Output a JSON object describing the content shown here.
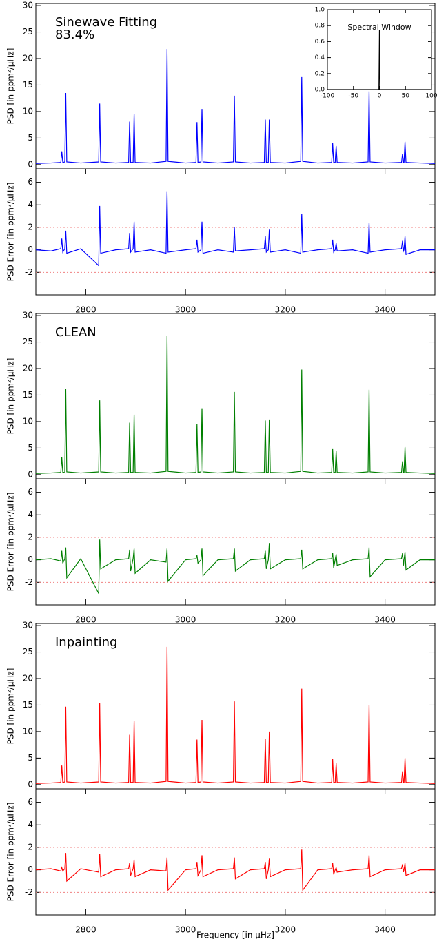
{
  "chart_data": [
    {
      "type": "line",
      "ylabel": "PSD [in ppm²/μHz]",
      "annotations": [
        "Sinewave Fitting",
        "83.4%"
      ],
      "xlim": [
        2700,
        3500
      ],
      "ylim": [
        -0.8,
        30.4
      ],
      "yticks": [
        0,
        5,
        10,
        15,
        20,
        25,
        30
      ],
      "x": [
        2700,
        2730,
        2750,
        2752,
        2754,
        2758,
        2760,
        2762,
        2790,
        2826,
        2828,
        2830,
        2860,
        2886,
        2888,
        2890,
        2895,
        2897,
        2899,
        2930,
        2961,
        2963,
        2965,
        3000,
        3021,
        3023,
        3025,
        3031,
        3033,
        3035,
        3065,
        3096,
        3098,
        3100,
        3130,
        3158,
        3160,
        3162,
        3166,
        3168,
        3170,
        3200,
        3231,
        3233,
        3235,
        3265,
        3293,
        3295,
        3297,
        3300,
        3302,
        3304,
        3335,
        3366,
        3368,
        3370,
        3400,
        3433,
        3435,
        3437,
        3438,
        3440,
        3442,
        3470,
        3500
      ],
      "series": [
        {
          "color": "#0000ff",
          "values": [
            0.2,
            0.3,
            0.4,
            2.5,
            0.4,
            0.5,
            13.5,
            0.5,
            0.3,
            0.5,
            11.5,
            0.5,
            0.3,
            0.4,
            8.1,
            0.4,
            0.4,
            9.5,
            0.4,
            0.3,
            0.6,
            21.8,
            0.6,
            0.3,
            0.4,
            8.0,
            0.4,
            0.5,
            10.5,
            0.5,
            0.3,
            0.5,
            13.0,
            0.5,
            0.3,
            0.4,
            8.5,
            0.4,
            0.4,
            8.5,
            0.4,
            0.3,
            0.6,
            16.5,
            0.6,
            0.3,
            0.4,
            4.0,
            0.4,
            0.4,
            3.5,
            0.4,
            0.3,
            0.5,
            13.8,
            0.5,
            0.3,
            0.4,
            2.0,
            0.4,
            0.4,
            4.3,
            0.4,
            0.3,
            0.2
          ]
        }
      ]
    },
    {
      "type": "line",
      "ylabel": "PSD Error [in ppm²/μHz]",
      "hlines": [
        2,
        -2
      ],
      "hline_color": "#f08080",
      "xlim": [
        2700,
        3500
      ],
      "xticks": [
        2800,
        3000,
        3200,
        3400
      ],
      "ylim": [
        -4,
        7.2
      ],
      "yticks": [
        -2,
        0,
        2,
        4,
        6
      ],
      "x": [
        2700,
        2730,
        2750,
        2752,
        2754,
        2758,
        2760,
        2762,
        2790,
        2826,
        2828,
        2830,
        2860,
        2886,
        2888,
        2890,
        2895,
        2897,
        2899,
        2930,
        2961,
        2963,
        2965,
        3000,
        3021,
        3023,
        3025,
        3031,
        3033,
        3035,
        3065,
        3096,
        3098,
        3100,
        3130,
        3158,
        3160,
        3162,
        3166,
        3168,
        3170,
        3200,
        3231,
        3233,
        3235,
        3265,
        3293,
        3295,
        3297,
        3300,
        3302,
        3304,
        3335,
        3366,
        3368,
        3370,
        3400,
        3433,
        3435,
        3437,
        3438,
        3440,
        3442,
        3470,
        3500
      ],
      "series": [
        {
          "color": "#0000ff",
          "values": [
            0,
            -0.1,
            0.1,
            1.0,
            -0.2,
            0.1,
            1.7,
            -0.3,
            0.1,
            -1.4,
            3.9,
            -0.3,
            0,
            0.1,
            1.5,
            -0.2,
            0.1,
            2.5,
            -0.2,
            0,
            -0.3,
            5.2,
            -0.2,
            0,
            0.1,
            0.9,
            -0.2,
            0,
            2.5,
            -0.3,
            0,
            -0.2,
            2.0,
            -0.1,
            0,
            0.1,
            1.2,
            -0.2,
            0,
            1.8,
            -0.2,
            0,
            -0.3,
            3.2,
            -0.2,
            0,
            0.1,
            0.9,
            -0.2,
            0,
            0.6,
            -0.1,
            0,
            -0.3,
            2.4,
            -0.2,
            0,
            0.1,
            0.8,
            -0.1,
            0,
            1.2,
            -0.4,
            0,
            0
          ]
        }
      ]
    },
    {
      "type": "line",
      "title": "Spectral Window",
      "xlim": [
        -100,
        100
      ],
      "xticks": [
        -100,
        -50,
        0,
        50,
        100
      ],
      "ylim": [
        0,
        1
      ],
      "yticks": [
        {
          "value": 0,
          "label": "0.0"
        },
        {
          "value": 0.2,
          "label": "0.2"
        },
        {
          "value": 0.4,
          "label": "0.4"
        },
        {
          "value": 0.6,
          "label": "0.6"
        },
        {
          "value": 0.8,
          "label": "0.8"
        },
        {
          "value": 1,
          "label": "1.0"
        }
      ],
      "x": [
        -100,
        -1,
        0,
        1,
        100
      ],
      "series": [
        {
          "color": "#000000",
          "values": [
            0,
            0,
            0.75,
            0,
            0
          ]
        }
      ]
    },
    {
      "type": "line",
      "ylabel": "PSD [in ppm²/μHz]",
      "annotations": [
        "CLEAN"
      ],
      "xlim": [
        2700,
        3500
      ],
      "ylim": [
        -0.8,
        30.4
      ],
      "yticks": [
        0,
        5,
        10,
        15,
        20,
        25,
        30
      ],
      "x": [
        2700,
        2730,
        2750,
        2752,
        2754,
        2758,
        2760,
        2762,
        2790,
        2826,
        2828,
        2830,
        2860,
        2886,
        2888,
        2890,
        2895,
        2897,
        2899,
        2930,
        2961,
        2963,
        2965,
        3000,
        3021,
        3023,
        3025,
        3031,
        3033,
        3035,
        3065,
        3096,
        3098,
        3100,
        3130,
        3158,
        3160,
        3162,
        3166,
        3168,
        3170,
        3200,
        3231,
        3233,
        3235,
        3265,
        3293,
        3295,
        3297,
        3300,
        3302,
        3304,
        3335,
        3366,
        3368,
        3370,
        3400,
        3433,
        3435,
        3437,
        3438,
        3440,
        3442,
        3470,
        3500
      ],
      "series": [
        {
          "color": "#007f00",
          "values": [
            0.2,
            0.3,
            0.4,
            3.3,
            0.4,
            0.5,
            16.2,
            0.5,
            0.3,
            0.5,
            14.0,
            0.5,
            0.3,
            0.4,
            9.8,
            0.4,
            0.4,
            11.3,
            0.4,
            0.3,
            0.6,
            26.2,
            0.6,
            0.3,
            0.4,
            9.5,
            0.4,
            0.5,
            12.5,
            0.5,
            0.3,
            0.5,
            15.6,
            0.5,
            0.3,
            0.4,
            10.2,
            0.4,
            0.4,
            10.4,
            0.4,
            0.3,
            0.6,
            19.8,
            0.6,
            0.3,
            0.4,
            4.8,
            0.4,
            0.4,
            4.5,
            0.4,
            0.3,
            0.5,
            16.0,
            0.5,
            0.3,
            0.4,
            2.5,
            0.4,
            0.4,
            5.2,
            0.4,
            0.3,
            0.2
          ]
        }
      ]
    },
    {
      "type": "line",
      "ylabel": "PSD Error [in ppm²/μHz]",
      "hlines": [
        2,
        -2
      ],
      "hline_color": "#f08080",
      "xlim": [
        2700,
        3500
      ],
      "xticks": [
        2800,
        3000,
        3200,
        3400
      ],
      "ylim": [
        -4,
        7.2
      ],
      "yticks": [
        -2,
        0,
        2,
        4,
        6
      ],
      "x": [
        2700,
        2730,
        2750,
        2752,
        2754,
        2758,
        2760,
        2762,
        2790,
        2826,
        2828,
        2830,
        2860,
        2886,
        2888,
        2890,
        2895,
        2897,
        2899,
        2930,
        2961,
        2963,
        2965,
        3000,
        3021,
        3023,
        3025,
        3031,
        3033,
        3035,
        3065,
        3096,
        3098,
        3100,
        3130,
        3158,
        3160,
        3162,
        3166,
        3168,
        3170,
        3200,
        3231,
        3233,
        3235,
        3265,
        3293,
        3295,
        3297,
        3300,
        3302,
        3304,
        3335,
        3366,
        3368,
        3370,
        3400,
        3433,
        3435,
        3437,
        3438,
        3440,
        3442,
        3470,
        3500
      ],
      "series": [
        {
          "color": "#007f00",
          "values": [
            0,
            0.1,
            -0.1,
            0.8,
            -0.3,
            0.1,
            1.1,
            -1.6,
            0.1,
            -3.0,
            1.8,
            -0.8,
            0,
            0.1,
            0.9,
            -1.0,
            0.1,
            1.0,
            -1.2,
            0,
            -0.2,
            1.0,
            -1.9,
            0,
            0.1,
            0.4,
            -0.3,
            0,
            1.0,
            -1.4,
            0,
            0.1,
            1.0,
            -1.0,
            0,
            0.1,
            0.8,
            -0.8,
            0,
            1.5,
            -0.8,
            0,
            0.1,
            0.9,
            -0.8,
            0,
            0.1,
            0.6,
            -0.7,
            0,
            0.5,
            -0.5,
            0,
            0.1,
            1.1,
            -1.5,
            0,
            0.1,
            0.6,
            -0.5,
            0,
            0.7,
            -0.9,
            0,
            0
          ]
        }
      ]
    },
    {
      "type": "line",
      "ylabel": "PSD [in ppm²/μHz]",
      "annotations": [
        "Inpainting"
      ],
      "xlim": [
        2700,
        3500
      ],
      "ylim": [
        -0.8,
        30.4
      ],
      "yticks": [
        0,
        5,
        10,
        15,
        20,
        25,
        30
      ],
      "x": [
        2700,
        2730,
        2750,
        2752,
        2754,
        2758,
        2760,
        2762,
        2790,
        2826,
        2828,
        2830,
        2860,
        2886,
        2888,
        2890,
        2895,
        2897,
        2899,
        2930,
        2961,
        2963,
        2965,
        3000,
        3021,
        3023,
        3025,
        3031,
        3033,
        3035,
        3065,
        3096,
        3098,
        3100,
        3130,
        3158,
        3160,
        3162,
        3166,
        3168,
        3170,
        3200,
        3231,
        3233,
        3235,
        3265,
        3293,
        3295,
        3297,
        3300,
        3302,
        3304,
        3335,
        3366,
        3368,
        3370,
        3400,
        3433,
        3435,
        3437,
        3438,
        3440,
        3442,
        3470,
        3500
      ],
      "series": [
        {
          "color": "#ff0000",
          "values": [
            0.2,
            0.3,
            0.4,
            3.6,
            0.4,
            0.5,
            14.7,
            0.5,
            0.3,
            0.5,
            15.4,
            0.5,
            0.3,
            0.4,
            9.4,
            0.4,
            0.4,
            12.0,
            0.4,
            0.3,
            0.6,
            26.0,
            0.6,
            0.3,
            0.4,
            8.5,
            0.4,
            0.5,
            12.2,
            0.5,
            0.3,
            0.5,
            15.7,
            0.5,
            0.3,
            0.4,
            8.6,
            0.4,
            0.4,
            10.0,
            0.4,
            0.3,
            0.6,
            18.1,
            0.6,
            0.3,
            0.4,
            4.8,
            0.4,
            0.4,
            4.0,
            0.4,
            0.3,
            0.5,
            15.0,
            0.5,
            0.3,
            0.4,
            2.5,
            0.4,
            0.4,
            5.0,
            0.4,
            0.3,
            0.2
          ]
        }
      ]
    },
    {
      "type": "line",
      "ylabel": "PSD Error [in ppm²/μHz]",
      "xlabel": "Frequency [in μHz]",
      "hlines": [
        2,
        -2
      ],
      "hline_color": "#f08080",
      "xlim": [
        2700,
        3500
      ],
      "xticks": [
        2800,
        3000,
        3200,
        3400
      ],
      "ylim": [
        -4,
        7.2
      ],
      "yticks": [
        -2,
        0,
        2,
        4,
        6
      ],
      "x": [
        2700,
        2730,
        2750,
        2752,
        2754,
        2758,
        2760,
        2762,
        2790,
        2826,
        2828,
        2830,
        2860,
        2886,
        2888,
        2890,
        2895,
        2897,
        2899,
        2930,
        2961,
        2963,
        2965,
        3000,
        3021,
        3023,
        3025,
        3031,
        3033,
        3035,
        3065,
        3096,
        3098,
        3100,
        3130,
        3158,
        3160,
        3162,
        3166,
        3168,
        3170,
        3200,
        3231,
        3233,
        3235,
        3265,
        3293,
        3295,
        3297,
        3300,
        3302,
        3304,
        3335,
        3366,
        3368,
        3370,
        3400,
        3433,
        3435,
        3437,
        3438,
        3440,
        3442,
        3470,
        3500
      ],
      "series": [
        {
          "color": "#ff0000",
          "values": [
            0,
            0.1,
            -0.1,
            0.2,
            -0.1,
            0.1,
            1.5,
            -1.0,
            0.1,
            -0.2,
            1.4,
            -0.6,
            0,
            0.1,
            0.6,
            -0.5,
            0.1,
            0.9,
            -0.6,
            0,
            -0.1,
            1.1,
            -1.8,
            0,
            0.1,
            0.7,
            -0.5,
            0,
            1.3,
            -0.6,
            0,
            0.1,
            1.1,
            -0.8,
            0,
            0.1,
            0.7,
            -0.8,
            0,
            1.0,
            -0.6,
            0,
            0.1,
            1.8,
            -1.8,
            0,
            0.1,
            0.6,
            -0.4,
            0,
            0.2,
            -0.2,
            0,
            0.1,
            1.3,
            -0.6,
            0,
            0.1,
            0.5,
            -0.2,
            0,
            0.6,
            -0.5,
            0,
            0
          ]
        }
      ]
    }
  ]
}
